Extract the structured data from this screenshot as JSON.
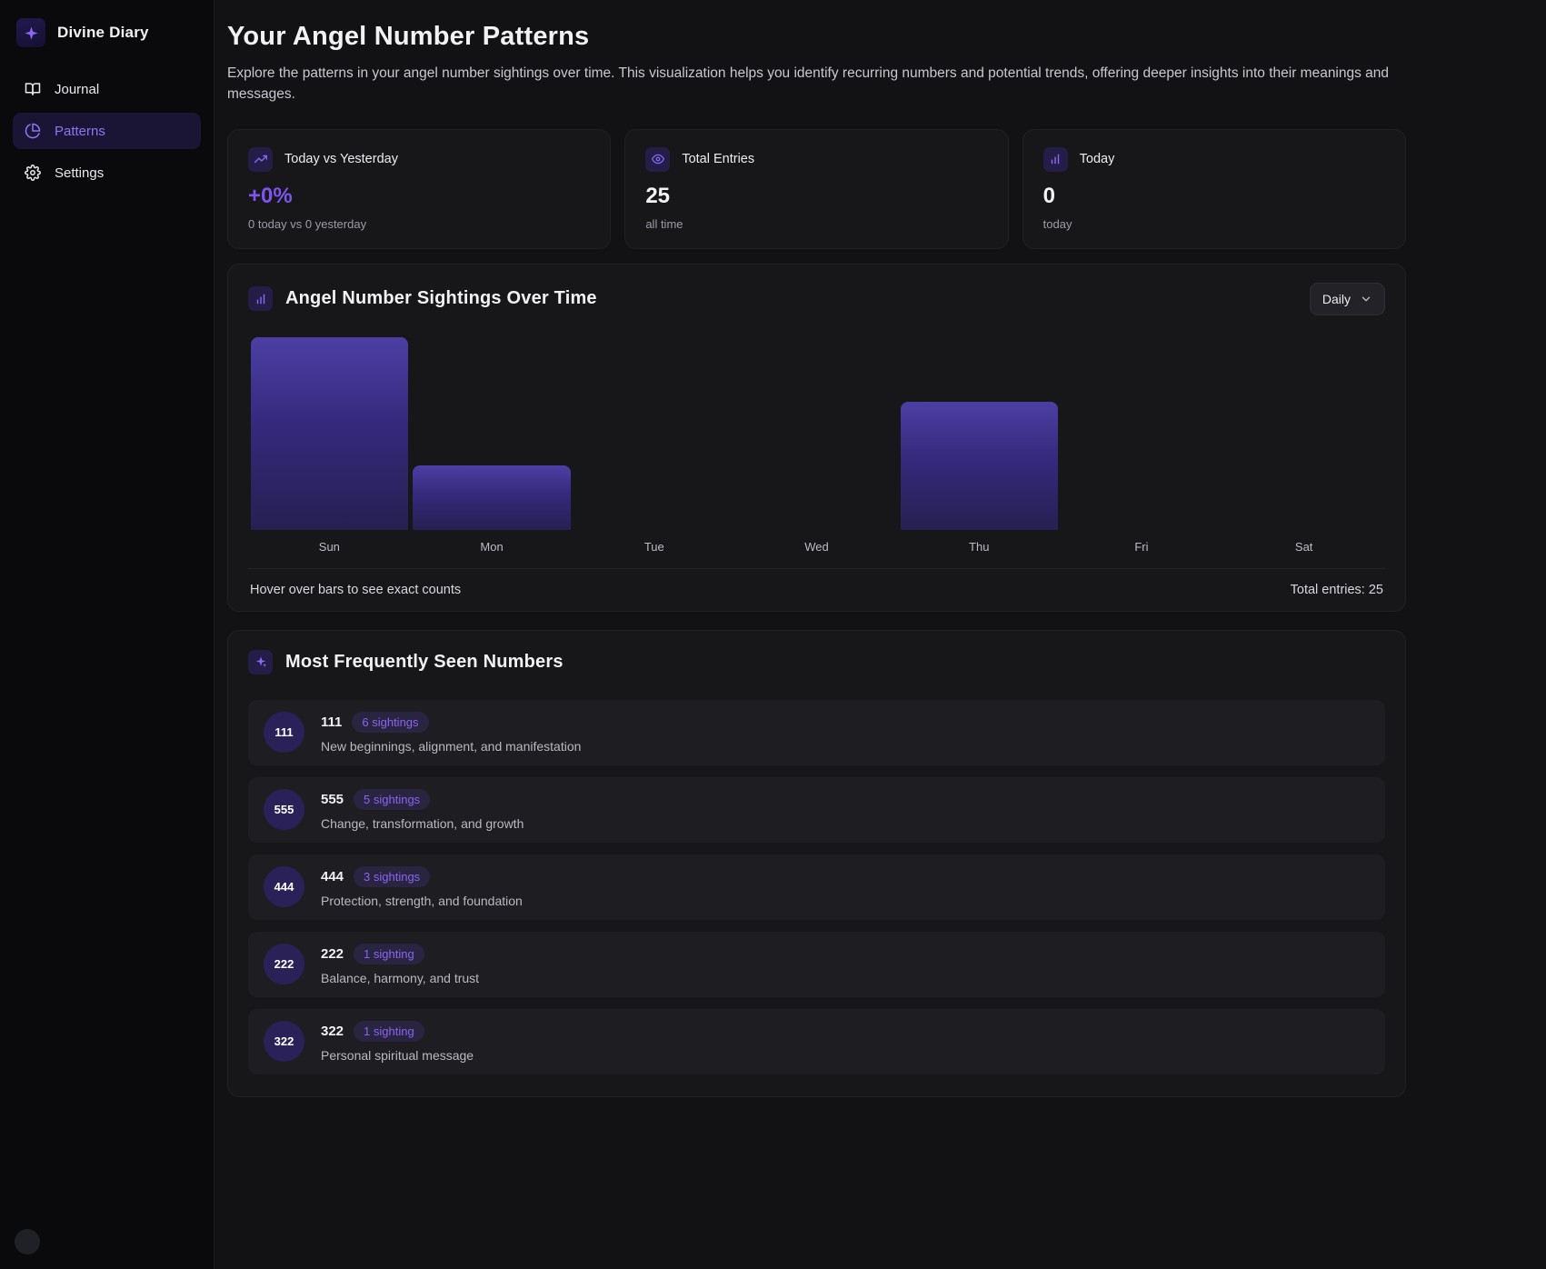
{
  "app": {
    "title": "Divine Diary"
  },
  "sidebar": {
    "items": [
      {
        "label": "Journal",
        "icon": "book-icon",
        "active": false
      },
      {
        "label": "Patterns",
        "icon": "pie-chart-icon",
        "active": true
      },
      {
        "label": "Settings",
        "icon": "gear-icon",
        "active": false
      }
    ]
  },
  "header": {
    "title": "Your Angel Number Patterns",
    "description": "Explore the patterns in your angel number sightings over time. This visualization helps you identify recurring numbers and potential trends, offering deeper insights into their meanings and messages."
  },
  "stats": [
    {
      "icon": "trending-up-icon",
      "label": "Today vs Yesterday",
      "value": "+0%",
      "sub": "0 today vs 0 yesterday",
      "accent": true
    },
    {
      "icon": "eye-icon",
      "label": "Total Entries",
      "value": "25",
      "sub": "all time",
      "accent": false
    },
    {
      "icon": "bar-chart-icon",
      "label": "Today",
      "value": "0",
      "sub": "today",
      "accent": false
    }
  ],
  "chart": {
    "title": "Angel Number Sightings Over Time",
    "range_selected": "Daily",
    "footer_hint": "Hover over bars to see exact counts",
    "footer_total": "Total entries: 25"
  },
  "chart_data": {
    "type": "bar",
    "categories": [
      "Sun",
      "Mon",
      "Tue",
      "Wed",
      "Thu",
      "Fri",
      "Sat"
    ],
    "values": [
      12,
      4,
      0,
      0,
      8,
      0,
      0
    ],
    "title": "Angel Number Sightings Over Time",
    "xlabel": "",
    "ylabel": "",
    "ylim": [
      0,
      12
    ],
    "grid": false,
    "legend": false,
    "note": "bar heights estimated from pixels; Sun tallest, Mon ~1/3, Thu ~2/3"
  },
  "frequent": {
    "title": "Most Frequently Seen Numbers",
    "items": [
      {
        "number": "111",
        "badge": "6 sightings",
        "description": "New beginnings, alignment, and manifestation"
      },
      {
        "number": "555",
        "badge": "5 sightings",
        "description": "Change, transformation, and growth"
      },
      {
        "number": "444",
        "badge": "3 sightings",
        "description": "Protection, strength, and foundation"
      },
      {
        "number": "222",
        "badge": "1 sighting",
        "description": "Balance, harmony, and trust"
      },
      {
        "number": "322",
        "badge": "1 sighting",
        "description": "Personal spiritual message"
      }
    ]
  },
  "colors": {
    "accent": "#7b55f0",
    "accent_soft": "#8a64f4",
    "bar_gradient_top": "#4c3fa4",
    "bar_gradient_bottom": "#262051",
    "card_bg": "#17171a",
    "sidebar_bg": "#0a0a0d",
    "page_bg": "#121214"
  }
}
